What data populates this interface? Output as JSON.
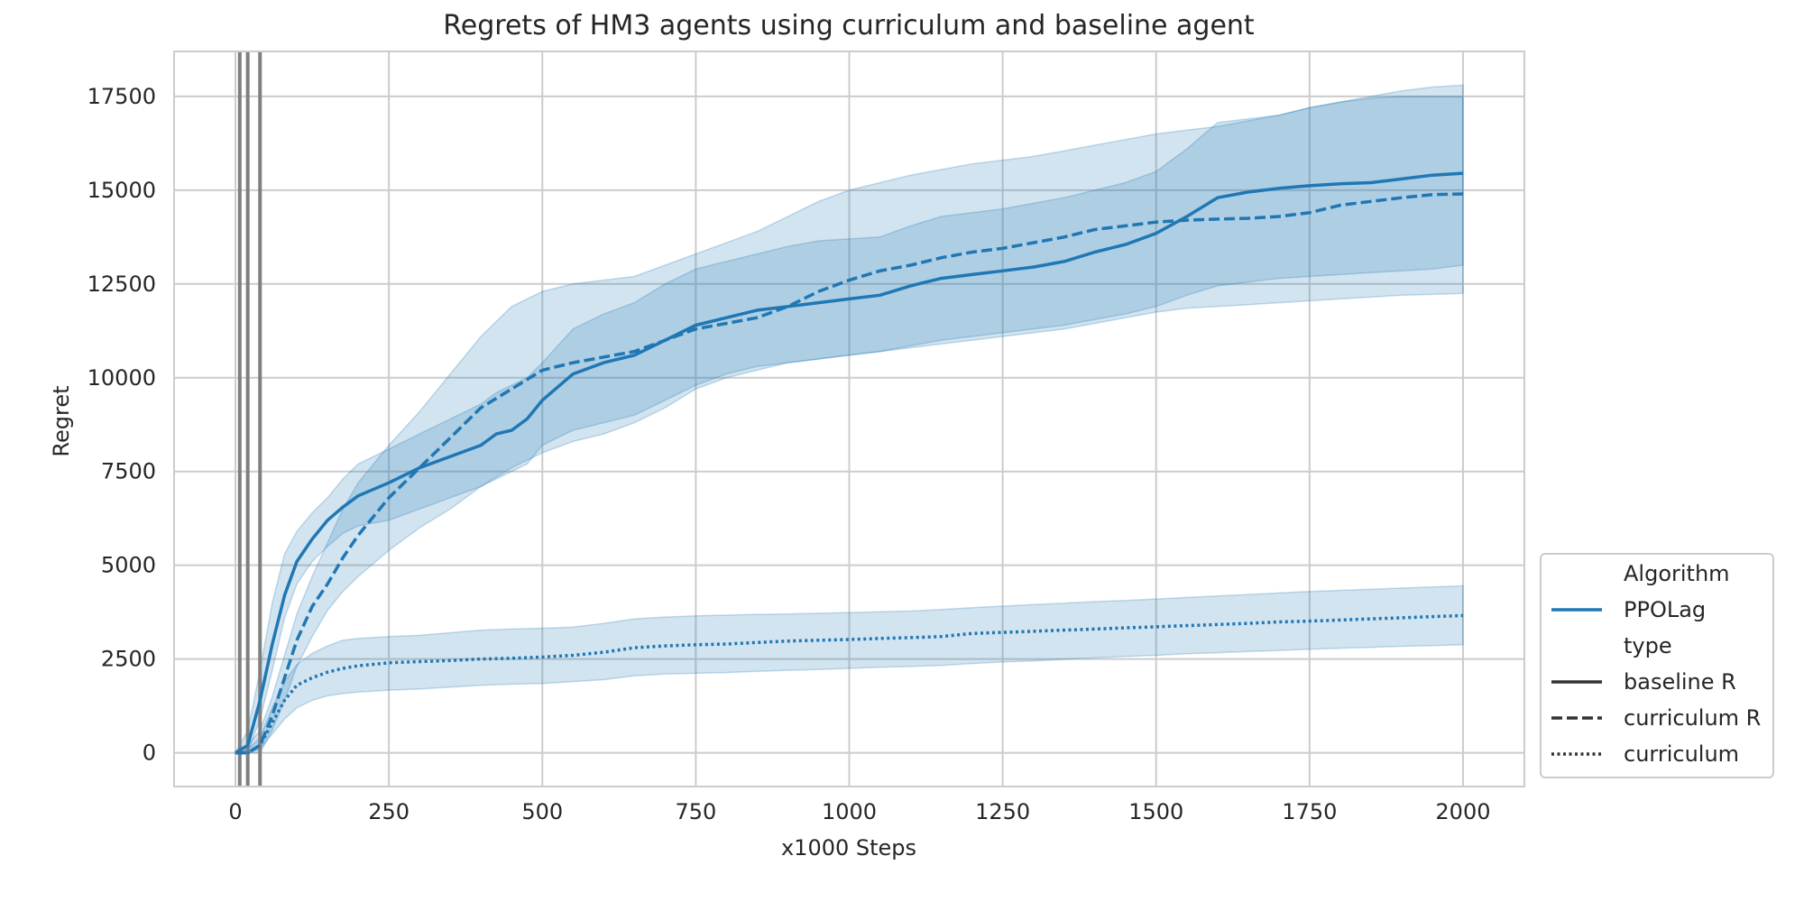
{
  "chart_data": {
    "type": "line",
    "title": "Regrets of HM3 agents using curriculum and baseline agent",
    "xlabel": "x1000 Steps",
    "ylabel": "Regret",
    "xlim": [
      -100,
      2100
    ],
    "ylim": [
      -900,
      18700
    ],
    "xticks": [
      0,
      250,
      500,
      750,
      1000,
      1250,
      1500,
      1750,
      2000
    ],
    "yticks": [
      0,
      2500,
      5000,
      7500,
      10000,
      12500,
      15000,
      17500
    ],
    "grid": true,
    "color": "#1f77b4",
    "vlines": [
      7,
      20,
      40
    ],
    "legend": {
      "placement": "outside-right-bottom",
      "entries": [
        {
          "label": "Algorithm",
          "style": "header"
        },
        {
          "label": "PPOLag",
          "style": "solid-blue"
        },
        {
          "label": "type",
          "style": "header"
        },
        {
          "label": "baseline R",
          "style": "solid"
        },
        {
          "label": "curriculum R",
          "style": "dashed"
        },
        {
          "label": "curriculum",
          "style": "dotted"
        }
      ]
    },
    "series": [
      {
        "name": "baseline R",
        "dash": "solid",
        "x": [
          0,
          20,
          40,
          60,
          80,
          100,
          125,
          150,
          175,
          200,
          250,
          300,
          350,
          400,
          425,
          450,
          475,
          500,
          550,
          600,
          650,
          700,
          750,
          800,
          850,
          900,
          950,
          1000,
          1050,
          1100,
          1150,
          1200,
          1250,
          1300,
          1350,
          1400,
          1450,
          1500,
          1550,
          1600,
          1650,
          1700,
          1750,
          1800,
          1850,
          1900,
          1950,
          2000
        ],
        "y": [
          0,
          200,
          1400,
          2900,
          4200,
          5100,
          5700,
          6200,
          6550,
          6850,
          7200,
          7600,
          7900,
          8200,
          8500,
          8600,
          8900,
          9400,
          10100,
          10400,
          10600,
          11000,
          11400,
          11600,
          11800,
          11900,
          12000,
          12100,
          12200,
          12450,
          12650,
          12750,
          12850,
          12950,
          13100,
          13350,
          13550,
          13850,
          14300,
          14800,
          14950,
          15050,
          15120,
          15170,
          15200,
          15300,
          15400,
          15450
        ],
        "lower": [
          0,
          0,
          900,
          2200,
          3600,
          4500,
          5100,
          5500,
          5850,
          6050,
          6200,
          6500,
          6800,
          7100,
          7300,
          7500,
          7700,
          8200,
          8600,
          8800,
          9000,
          9400,
          9800,
          10100,
          10300,
          10400,
          10500,
          10600,
          10700,
          10850,
          11000,
          11100,
          11200,
          11300,
          11400,
          11550,
          11700,
          11900,
          12200,
          12450,
          12550,
          12650,
          12700,
          12750,
          12800,
          12850,
          12900,
          13000
        ],
        "upper": [
          0,
          600,
          2200,
          4000,
          5300,
          5900,
          6400,
          6800,
          7300,
          7700,
          8100,
          8500,
          8900,
          9300,
          9600,
          9800,
          10000,
          10400,
          11300,
          11700,
          12000,
          12500,
          12900,
          13100,
          13300,
          13500,
          13650,
          13700,
          13750,
          14050,
          14300,
          14400,
          14500,
          14650,
          14800,
          15000,
          15200,
          15500,
          16100,
          16800,
          16900,
          17000,
          17200,
          17350,
          17450,
          17500,
          17500,
          17500
        ]
      },
      {
        "name": "curriculum R",
        "dash": "dashed",
        "x": [
          0,
          20,
          40,
          60,
          80,
          100,
          125,
          150,
          175,
          200,
          250,
          300,
          350,
          400,
          450,
          500,
          550,
          600,
          650,
          700,
          750,
          800,
          850,
          900,
          950,
          1000,
          1050,
          1100,
          1150,
          1200,
          1250,
          1300,
          1350,
          1400,
          1450,
          1500,
          1550,
          1600,
          1650,
          1700,
          1750,
          1800,
          1850,
          1900,
          1950,
          2000
        ],
        "y": [
          0,
          0,
          200,
          1000,
          2000,
          3000,
          3900,
          4500,
          5200,
          5800,
          6800,
          7600,
          8400,
          9200,
          9700,
          10200,
          10400,
          10550,
          10700,
          11000,
          11300,
          11450,
          11600,
          11900,
          12300,
          12600,
          12850,
          13000,
          13200,
          13350,
          13450,
          13600,
          13750,
          13950,
          14050,
          14150,
          14200,
          14230,
          14250,
          14300,
          14400,
          14600,
          14700,
          14800,
          14880,
          14900
        ],
        "lower": [
          0,
          0,
          0,
          600,
          1400,
          2300,
          3100,
          3800,
          4300,
          4700,
          5400,
          6000,
          6500,
          7100,
          7600,
          8000,
          8300,
          8500,
          8800,
          9200,
          9700,
          10000,
          10200,
          10400,
          10500,
          10600,
          10700,
          10800,
          10900,
          11000,
          11100,
          11200,
          11300,
          11450,
          11600,
          11750,
          11850,
          11900,
          11950,
          12000,
          12050,
          12100,
          12150,
          12200,
          12220,
          12250
        ],
        "upper": [
          0,
          200,
          600,
          1500,
          2600,
          3700,
          4700,
          5600,
          6500,
          7200,
          8200,
          9100,
          10100,
          11100,
          11900,
          12300,
          12500,
          12600,
          12700,
          13000,
          13300,
          13600,
          13900,
          14300,
          14700,
          15000,
          15200,
          15400,
          15550,
          15700,
          15800,
          15900,
          16050,
          16200,
          16350,
          16500,
          16600,
          16700,
          16850,
          17000,
          17200,
          17350,
          17500,
          17650,
          17750,
          17800
        ]
      },
      {
        "name": "curriculum",
        "dash": "dotted",
        "x": [
          0,
          20,
          40,
          60,
          80,
          100,
          125,
          150,
          175,
          200,
          250,
          300,
          350,
          400,
          450,
          500,
          550,
          600,
          650,
          700,
          750,
          800,
          850,
          900,
          950,
          1000,
          1050,
          1100,
          1150,
          1200,
          1250,
          1300,
          1350,
          1400,
          1450,
          1500,
          1550,
          1600,
          1650,
          1700,
          1750,
          1800,
          1850,
          1900,
          1950,
          2000
        ],
        "y": [
          0,
          0,
          200,
          800,
          1400,
          1800,
          2000,
          2150,
          2250,
          2320,
          2400,
          2430,
          2460,
          2500,
          2520,
          2550,
          2600,
          2680,
          2800,
          2850,
          2880,
          2900,
          2940,
          2980,
          3000,
          3020,
          3050,
          3070,
          3100,
          3180,
          3210,
          3240,
          3270,
          3300,
          3330,
          3360,
          3390,
          3420,
          3450,
          3490,
          3510,
          3540,
          3570,
          3600,
          3630,
          3660
        ],
        "lower": [
          0,
          0,
          100,
          500,
          900,
          1200,
          1400,
          1520,
          1580,
          1620,
          1670,
          1700,
          1750,
          1800,
          1830,
          1850,
          1900,
          1950,
          2050,
          2100,
          2120,
          2140,
          2170,
          2200,
          2220,
          2250,
          2280,
          2300,
          2330,
          2380,
          2420,
          2450,
          2490,
          2530,
          2570,
          2600,
          2640,
          2670,
          2700,
          2730,
          2760,
          2790,
          2810,
          2840,
          2860,
          2880
        ],
        "upper": [
          0,
          100,
          400,
          1200,
          1900,
          2350,
          2650,
          2850,
          3000,
          3050,
          3100,
          3130,
          3200,
          3270,
          3300,
          3320,
          3350,
          3450,
          3570,
          3620,
          3650,
          3670,
          3690,
          3700,
          3720,
          3740,
          3760,
          3780,
          3820,
          3870,
          3910,
          3950,
          3990,
          4030,
          4060,
          4100,
          4140,
          4180,
          4220,
          4260,
          4300,
          4330,
          4360,
          4390,
          4420,
          4450
        ]
      }
    ]
  }
}
